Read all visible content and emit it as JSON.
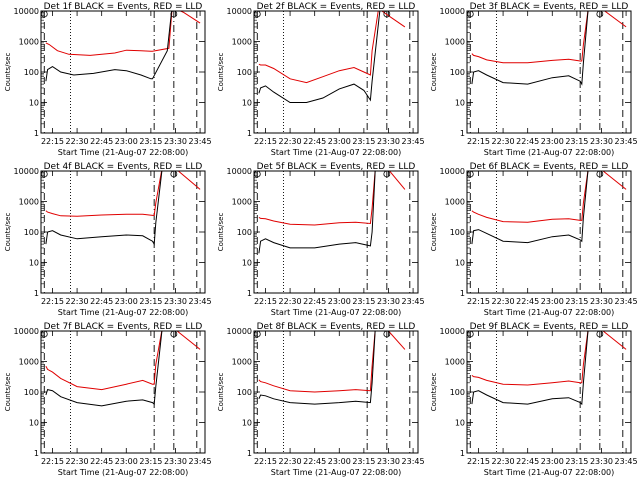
{
  "figure": {
    "ylabel": "Counts/sec",
    "xlabel": "Start Time (21-Aug-07 22:08:00)",
    "xticks": [
      "22:15",
      "22:30",
      "22:45",
      "23:00",
      "23:15",
      "23:30",
      "23:45"
    ],
    "yticks": [
      "1",
      "10",
      "100",
      "1000",
      "10000"
    ],
    "colors": {
      "events": "#000000",
      "lld": "#e00000"
    }
  },
  "chart_data": [
    {
      "type": "line",
      "title": "Det 1f BLACK = Events, RED = LLD",
      "ylog": true,
      "ylim": [
        1,
        10000
      ],
      "xlim": [
        "22:08",
        "23:48"
      ],
      "series": [
        {
          "name": "Events",
          "x": [
            "22:11",
            "22:12",
            "22:15",
            "22:20",
            "22:28",
            "22:40",
            "22:53",
            "23:00",
            "23:09",
            "23:15",
            "23:16",
            "23:25",
            "23:28"
          ],
          "y": [
            50,
            120,
            150,
            100,
            80,
            90,
            120,
            110,
            80,
            60,
            60,
            500,
            15000
          ]
        },
        {
          "name": "LLD",
          "x": [
            "22:11",
            "22:13",
            "22:18",
            "22:25",
            "22:38",
            "22:53",
            "23:00",
            "23:09",
            "23:15",
            "23:16",
            "23:26",
            "23:28",
            "23:35",
            "23:45"
          ],
          "y": [
            900,
            800,
            500,
            380,
            350,
            420,
            520,
            500,
            480,
            480,
            600,
            13000,
            9000,
            4000
          ]
        }
      ]
    },
    {
      "type": "line",
      "title": "Det 2f BLACK = Events, RED = LLD",
      "ylog": true,
      "ylim": [
        1,
        10000
      ],
      "xlim": [
        "22:08",
        "23:48"
      ],
      "series": [
        {
          "name": "Events",
          "x": [
            "22:11",
            "22:12",
            "22:15",
            "22:20",
            "22:30",
            "22:40",
            "22:50",
            "23:00",
            "23:09",
            "23:15",
            "23:19",
            "23:20",
            "23:25"
          ],
          "y": [
            20,
            30,
            35,
            22,
            10,
            10,
            14,
            28,
            40,
            25,
            12,
            50,
            14000
          ]
        },
        {
          "name": "LLD",
          "x": [
            "22:11",
            "22:12",
            "22:15",
            "22:20",
            "22:30",
            "22:40",
            "22:50",
            "23:00",
            "23:09",
            "23:15",
            "23:19",
            "23:20",
            "23:24",
            "23:30",
            "23:40"
          ],
          "y": [
            180,
            170,
            170,
            130,
            60,
            45,
            70,
            110,
            140,
            100,
            80,
            500,
            12000,
            7000,
            3000
          ]
        }
      ]
    },
    {
      "type": "line",
      "title": "Det 3f BLACK = Events, RED = LLD",
      "ylog": true,
      "ylim": [
        1,
        10000
      ],
      "xlim": [
        "22:08",
        "23:48"
      ],
      "series": [
        {
          "name": "Events",
          "x": [
            "22:11",
            "22:12",
            "22:15",
            "22:20",
            "22:30",
            "22:45",
            "23:00",
            "23:10",
            "23:17",
            "23:18",
            "23:19",
            "23:22"
          ],
          "y": [
            40,
            100,
            110,
            80,
            45,
            40,
            65,
            75,
            50,
            40,
            200,
            14000
          ]
        },
        {
          "name": "LLD",
          "x": [
            "22:11",
            "22:12",
            "22:15",
            "22:20",
            "22:30",
            "22:45",
            "23:00",
            "23:10",
            "23:17",
            "23:18",
            "23:19",
            "23:22",
            "23:30",
            "23:45"
          ],
          "y": [
            400,
            350,
            320,
            250,
            200,
            200,
            240,
            260,
            230,
            230,
            800,
            13000,
            12000,
            3000
          ]
        }
      ]
    },
    {
      "type": "line",
      "title": "Det 4f BLACK = Events, RED = LLD",
      "ylog": true,
      "ylim": [
        1,
        10000
      ],
      "xlim": [
        "22:08",
        "23:48"
      ],
      "series": [
        {
          "name": "Events",
          "x": [
            "22:11",
            "22:12",
            "22:15",
            "22:20",
            "22:30",
            "22:45",
            "23:00",
            "23:10",
            "23:16",
            "23:17",
            "23:18",
            "23:22"
          ],
          "y": [
            40,
            100,
            110,
            80,
            60,
            70,
            80,
            75,
            50,
            40,
            200,
            14000
          ]
        },
        {
          "name": "LLD",
          "x": [
            "22:11",
            "22:12",
            "22:15",
            "22:20",
            "22:30",
            "22:45",
            "23:00",
            "23:10",
            "23:16",
            "23:17",
            "23:18",
            "23:22",
            "23:30",
            "23:45"
          ],
          "y": [
            500,
            450,
            400,
            340,
            330,
            360,
            380,
            380,
            350,
            350,
            900,
            14000,
            12000,
            2500
          ]
        }
      ]
    },
    {
      "type": "line",
      "title": "Det 5f BLACK = Events, RED = LLD",
      "ylog": true,
      "ylim": [
        1,
        10000
      ],
      "xlim": [
        "22:08",
        "23:48"
      ],
      "series": [
        {
          "name": "Events",
          "x": [
            "22:11",
            "22:12",
            "22:15",
            "22:20",
            "22:30",
            "22:45",
            "23:00",
            "23:10",
            "23:19",
            "23:20",
            "23:22"
          ],
          "y": [
            20,
            50,
            60,
            45,
            30,
            30,
            40,
            45,
            35,
            100,
            14000
          ]
        },
        {
          "name": "LLD",
          "x": [
            "22:11",
            "22:12",
            "22:15",
            "22:20",
            "22:30",
            "22:45",
            "23:00",
            "23:10",
            "23:19",
            "23:20",
            "23:22",
            "23:30",
            "23:40"
          ],
          "y": [
            300,
            280,
            270,
            230,
            180,
            170,
            200,
            210,
            190,
            600,
            13000,
            11000,
            2500
          ]
        }
      ]
    },
    {
      "type": "line",
      "title": "Det 6f BLACK = Events, RED = LLD",
      "ylog": true,
      "ylim": [
        1,
        10000
      ],
      "xlim": [
        "22:08",
        "23:48"
      ],
      "series": [
        {
          "name": "Events",
          "x": [
            "22:11",
            "22:12",
            "22:15",
            "22:20",
            "22:30",
            "22:45",
            "23:00",
            "23:10",
            "23:17",
            "23:18",
            "23:19",
            "23:22"
          ],
          "y": [
            40,
            110,
            120,
            90,
            50,
            45,
            70,
            80,
            55,
            50,
            300,
            14000
          ]
        },
        {
          "name": "LLD",
          "x": [
            "22:11",
            "22:12",
            "22:15",
            "22:20",
            "22:30",
            "22:45",
            "23:00",
            "23:10",
            "23:17",
            "23:18",
            "23:19",
            "23:22",
            "23:30",
            "23:45"
          ],
          "y": [
            500,
            450,
            380,
            300,
            220,
            210,
            260,
            270,
            240,
            240,
            900,
            13000,
            11000,
            2500
          ]
        }
      ]
    },
    {
      "type": "line",
      "title": "Det 7f BLACK = Events, RED = LLD",
      "ylog": true,
      "ylim": [
        1,
        10000
      ],
      "xlim": [
        "22:08",
        "23:48"
      ],
      "series": [
        {
          "name": "Events",
          "x": [
            "22:11",
            "22:12",
            "22:15",
            "22:20",
            "22:30",
            "22:45",
            "23:00",
            "23:10",
            "23:16",
            "23:17",
            "23:18",
            "23:22"
          ],
          "y": [
            80,
            120,
            110,
            70,
            45,
            35,
            50,
            55,
            45,
            40,
            150,
            14000
          ]
        },
        {
          "name": "LLD",
          "x": [
            "22:11",
            "22:12",
            "22:15",
            "22:20",
            "22:30",
            "22:45",
            "23:00",
            "23:10",
            "23:16",
            "23:17",
            "23:18",
            "23:22",
            "23:30",
            "23:45"
          ],
          "y": [
            700,
            550,
            450,
            280,
            150,
            120,
            180,
            240,
            180,
            180,
            800,
            13000,
            11000,
            2500
          ]
        }
      ]
    },
    {
      "type": "line",
      "title": "Det 8f BLACK = Events, RED = LLD",
      "ylog": true,
      "ylim": [
        1,
        10000
      ],
      "xlim": [
        "22:08",
        "23:48"
      ],
      "series": [
        {
          "name": "Events",
          "x": [
            "22:11",
            "22:12",
            "22:15",
            "22:20",
            "22:30",
            "22:45",
            "23:00",
            "23:10",
            "23:19",
            "23:20",
            "23:22"
          ],
          "y": [
            60,
            80,
            75,
            60,
            45,
            40,
            45,
            50,
            45,
            200,
            14000
          ]
        },
        {
          "name": "LLD",
          "x": [
            "22:11",
            "22:12",
            "22:15",
            "22:20",
            "22:30",
            "22:45",
            "23:00",
            "23:10",
            "23:19",
            "23:20",
            "23:22",
            "23:30",
            "23:40"
          ],
          "y": [
            250,
            220,
            200,
            160,
            110,
            100,
            110,
            120,
            110,
            700,
            13000,
            10000,
            2500
          ]
        }
      ]
    },
    {
      "type": "line",
      "title": "Det 9f BLACK = Events, RED = LLD",
      "ylog": true,
      "ylim": [
        1,
        10000
      ],
      "xlim": [
        "22:08",
        "23:48"
      ],
      "series": [
        {
          "name": "Events",
          "x": [
            "22:11",
            "22:12",
            "22:15",
            "22:20",
            "22:30",
            "22:45",
            "23:00",
            "23:10",
            "23:17",
            "23:18",
            "23:19",
            "23:22"
          ],
          "y": [
            40,
            100,
            110,
            80,
            45,
            40,
            60,
            65,
            45,
            40,
            200,
            14000
          ]
        },
        {
          "name": "LLD",
          "x": [
            "22:11",
            "22:12",
            "22:15",
            "22:20",
            "22:30",
            "22:45",
            "23:00",
            "23:10",
            "23:17",
            "23:18",
            "23:19",
            "23:22",
            "23:30",
            "23:45"
          ],
          "y": [
            350,
            320,
            300,
            240,
            180,
            170,
            200,
            230,
            200,
            200,
            800,
            13000,
            11000,
            2500
          ]
        }
      ]
    }
  ]
}
